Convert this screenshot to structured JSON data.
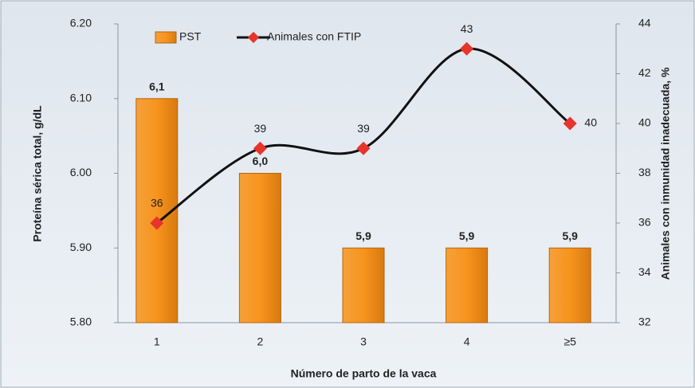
{
  "chart_data": {
    "type": "bar",
    "categories": [
      "1",
      "2",
      "3",
      "4",
      "≥5"
    ],
    "series": [
      {
        "name": "PST",
        "type": "bar",
        "color": "#f7941d",
        "values": [
          6.1,
          6.0,
          5.9,
          5.9,
          5.9
        ],
        "value_labels": [
          "6,1",
          "6,0",
          "5,9",
          "5,9",
          "5,9"
        ]
      },
      {
        "name": "Animales con FTIP",
        "type": "line",
        "axis": "y2",
        "color": "#111111",
        "marker_color": "#e8342a",
        "values": [
          36,
          39,
          39,
          43,
          40
        ]
      }
    ],
    "xlabel": "Número de parto de la vaca",
    "ylabel": "Proteína sérica total, g/dL",
    "y2label": "Animales con inmunidad inadecuada, %",
    "ylim": [
      5.8,
      6.2
    ],
    "yticks": [
      {
        "value": 5.8,
        "label": "5.80"
      },
      {
        "value": 5.9,
        "label": "5.90"
      },
      {
        "value": 6.0,
        "label": "6.00"
      },
      {
        "value": 6.1,
        "label": "6.10"
      },
      {
        "value": 6.2,
        "label": "6.20"
      }
    ],
    "y2lim": [
      32,
      44
    ],
    "y2ticks": [
      32,
      34,
      36,
      38,
      40,
      42,
      44
    ],
    "legend": "top",
    "grid": false
  }
}
